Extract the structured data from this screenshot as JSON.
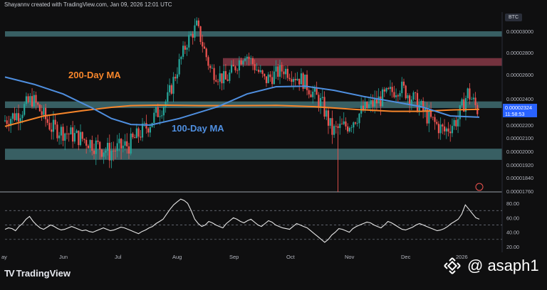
{
  "header": {
    "text": "Shayannv created with TradingView.com, Jan 09, 2026 12:01 UTC"
  },
  "symbol_badge": "BTC",
  "footer": {
    "brand": "TradingView"
  },
  "watermark": {
    "handle": "@ asaph1"
  },
  "colors": {
    "background": "#0f0f10",
    "up": "#26a69a",
    "down": "#ef5350",
    "ma200": "#f7862b",
    "ma100": "#4f8fe0",
    "zone": "#5ba3a8",
    "supply_zone": "#b84a5d",
    "oscillator": "#e6e6e6",
    "price_tag": "#2962ff"
  },
  "chart_data": [
    {
      "type": "candlestick",
      "x_tick_labels": [
        "ay",
        "Jun",
        "Jul",
        "Aug",
        "Sep",
        "Oct",
        "Nov",
        "Dec",
        "2026"
      ],
      "y_tick_labels": [
        "0.00003000",
        "0.00002800",
        "0.00002600",
        "0.00002400",
        "0.00002200",
        "0.00002100",
        "0.00002000",
        "0.00001920",
        "0.00001840",
        "0.00001760"
      ],
      "price_tag": {
        "value": "0.00002324",
        "countdown": "11:58:53"
      },
      "annotations": [
        {
          "text": "200-Day MA",
          "color": "#f7862b"
        },
        {
          "text": "100-Day MA",
          "color": "#4f8fe0"
        }
      ],
      "zones": [
        {
          "name": "top-zone",
          "from": 2.95e-05,
          "to": 3e-05
        },
        {
          "name": "supply-zone",
          "from": 2.68e-05,
          "to": 2.75e-05
        },
        {
          "name": "middle-zone",
          "from": 2.33e-05,
          "to": 2.38e-05
        },
        {
          "name": "bottom-zone",
          "from": 1.95e-05,
          "to": 2.02e-05
        }
      ],
      "series": [
        {
          "name": "200-Day MA",
          "points": [
            [
              0,
              2.19e-05
            ],
            [
              20,
              2.27e-05
            ],
            [
              40,
              2.31e-05
            ],
            [
              55,
              2.335e-05
            ],
            [
              65,
              2.348e-05
            ],
            [
              80,
              2.352e-05
            ],
            [
              100,
              2.348e-05
            ],
            [
              120,
              2.348e-05
            ],
            [
              140,
              2.35e-05
            ],
            [
              160,
              2.34e-05
            ],
            [
              180,
              2.32e-05
            ],
            [
              200,
              2.305e-05
            ],
            [
              215,
              2.305e-05
            ],
            [
              230,
              2.315e-05
            ],
            [
              245,
              2.32e-05
            ]
          ]
        },
        {
          "name": "100-Day MA",
          "points": [
            [
              0,
              2.58e-05
            ],
            [
              15,
              2.52e-05
            ],
            [
              30,
              2.44e-05
            ],
            [
              45,
              2.33e-05
            ],
            [
              55,
              2.25e-05
            ],
            [
              65,
              2.205e-05
            ],
            [
              75,
              2.2e-05
            ],
            [
              90,
              2.25e-05
            ],
            [
              110,
              2.34e-05
            ],
            [
              125,
              2.44e-05
            ],
            [
              140,
              2.5e-05
            ],
            [
              155,
              2.505e-05
            ],
            [
              170,
              2.47e-05
            ],
            [
              185,
              2.42e-05
            ],
            [
              200,
              2.38e-05
            ],
            [
              215,
              2.34e-05
            ],
            [
              230,
              2.27e-05
            ],
            [
              245,
              2.26e-05
            ]
          ]
        }
      ]
    },
    {
      "type": "line",
      "name": "oscillator",
      "y_tick_labels": [
        "80.00",
        "60.00",
        "40.00",
        "20.00"
      ],
      "ylim": [
        15,
        90
      ],
      "levels": [
        70,
        50,
        30
      ],
      "values": [
        44,
        46,
        45,
        42,
        48,
        52,
        58,
        62,
        55,
        50,
        46,
        44,
        47,
        50,
        48,
        45,
        43,
        44,
        46,
        48,
        46,
        44,
        42,
        43,
        41,
        40,
        42,
        44,
        46,
        44,
        42,
        43,
        45,
        47,
        46,
        44,
        42,
        40,
        38,
        41,
        43,
        46,
        48,
        52,
        55,
        58,
        65,
        72,
        78,
        82,
        86,
        84,
        80,
        70,
        58,
        52,
        48,
        50,
        55,
        53,
        50,
        48,
        46,
        52,
        56,
        60,
        58,
        55,
        53,
        56,
        58,
        54,
        50,
        48,
        52,
        56,
        54,
        50,
        48,
        46,
        45,
        44,
        48,
        52,
        50,
        48,
        46,
        42,
        38,
        34,
        30,
        26,
        30,
        36,
        40,
        45,
        44,
        42,
        40,
        45,
        48,
        50,
        52,
        54,
        53,
        50,
        48,
        46,
        50,
        55,
        53,
        50,
        47,
        44,
        43,
        45,
        47,
        50,
        52,
        50,
        48,
        46,
        44,
        42,
        43,
        45,
        48,
        52,
        55,
        58,
        65,
        78,
        72,
        66,
        60,
        58
      ]
    }
  ]
}
